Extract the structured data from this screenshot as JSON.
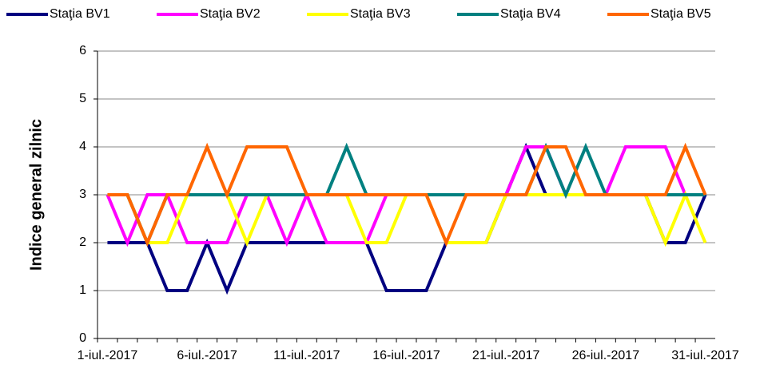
{
  "chart_data": {
    "type": "line",
    "y_label": "Indice general zilnic",
    "categories": [
      "1-iul.-2017",
      null,
      null,
      null,
      null,
      "6-iul.-2017",
      null,
      null,
      null,
      null,
      "11-iul.-2017",
      null,
      null,
      null,
      null,
      "16-iul.-2017",
      null,
      null,
      null,
      null,
      "21-iul.-2017",
      null,
      null,
      null,
      null,
      "26-iul.-2017",
      null,
      null,
      null,
      null,
      "31-iul.-2017"
    ],
    "series": [
      {
        "name": "Staţia BV1",
        "color": "#000080",
        "values": [
          2,
          2,
          2,
          1,
          1,
          2,
          1,
          2,
          2,
          2,
          2,
          2,
          2,
          2,
          1,
          1,
          1,
          2,
          2,
          2,
          3,
          4,
          3,
          3,
          3,
          3,
          3,
          3,
          2,
          2,
          3
        ]
      },
      {
        "name": "Staţia BV2",
        "color": "#ff00ff",
        "values": [
          3,
          2,
          3,
          3,
          2,
          2,
          2,
          3,
          3,
          2,
          3,
          2,
          2,
          2,
          3,
          3,
          3,
          3,
          3,
          3,
          3,
          4,
          4,
          3,
          3,
          3,
          4,
          4,
          4,
          3,
          3
        ]
      },
      {
        "name": "Staţia BV3",
        "color": "#ffff00",
        "values": [
          3,
          3,
          2,
          2,
          3,
          3,
          3,
          2,
          3,
          3,
          3,
          3,
          3,
          2,
          2,
          3,
          3,
          2,
          2,
          2,
          3,
          3,
          3,
          3,
          3,
          3,
          3,
          3,
          2,
          3,
          2
        ]
      },
      {
        "name": "Staţia BV4",
        "color": "#008080",
        "values": [
          3,
          3,
          2,
          3,
          3,
          3,
          3,
          3,
          3,
          3,
          3,
          3,
          4,
          3,
          3,
          3,
          3,
          3,
          3,
          3,
          3,
          3,
          4,
          3,
          4,
          3,
          3,
          3,
          3,
          3,
          3
        ]
      },
      {
        "name": "Staţia BV5",
        "color": "#ff6600",
        "values": [
          3,
          3,
          2,
          3,
          3,
          4,
          3,
          4,
          4,
          4,
          3,
          3,
          3,
          3,
          3,
          3,
          3,
          2,
          3,
          3,
          3,
          3,
          4,
          4,
          3,
          3,
          3,
          3,
          3,
          4,
          3
        ]
      }
    ],
    "ylim": [
      0,
      6
    ],
    "yticks": [
      0,
      1,
      2,
      3,
      4,
      5,
      6
    ],
    "grid": true,
    "legend": "top"
  }
}
